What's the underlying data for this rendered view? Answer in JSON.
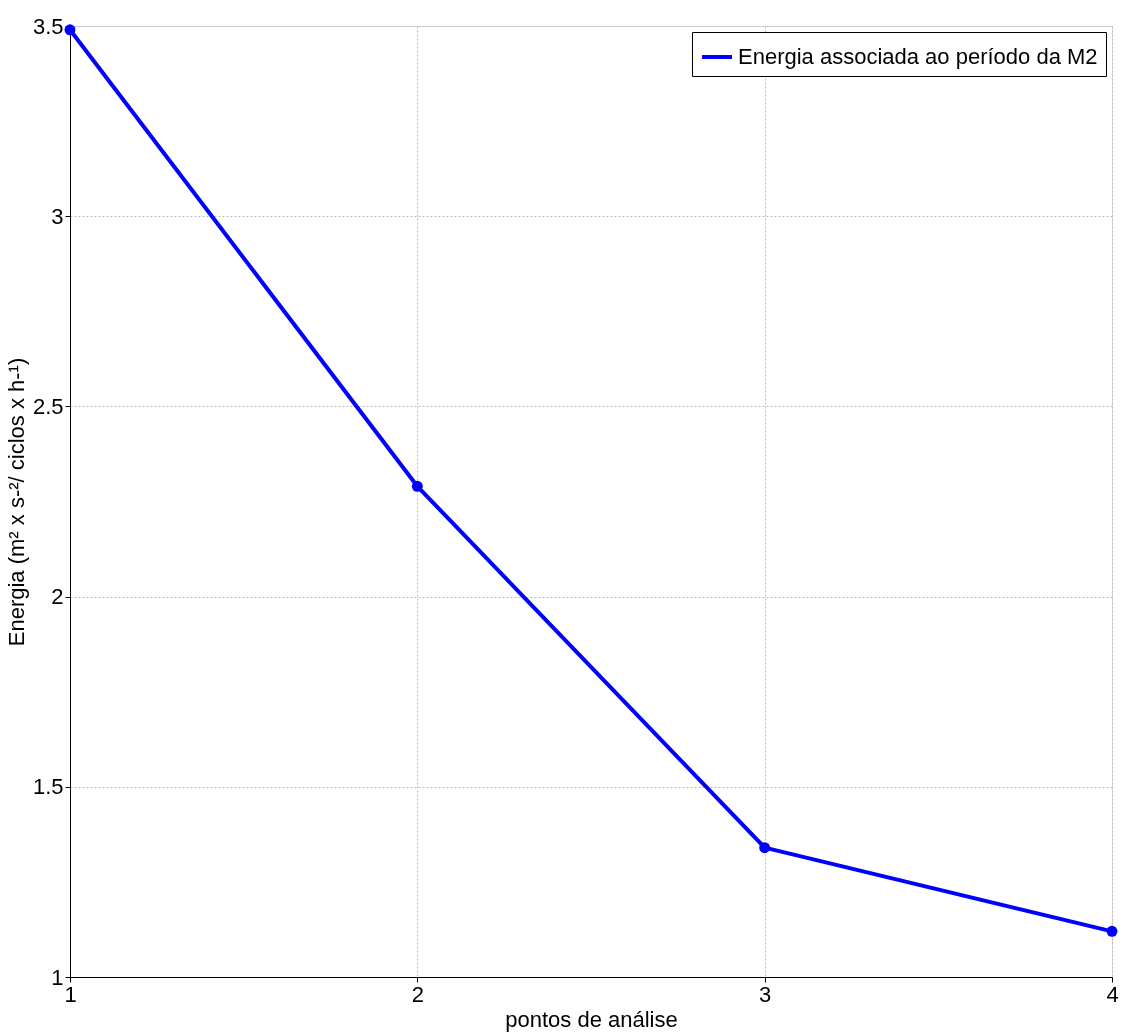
{
  "chart_data": {
    "type": "line",
    "xlabel": "pontos de análise",
    "ylabel": "Energia (m² x s-²/ ciclos x h-¹)",
    "x": [
      1,
      2,
      3,
      4
    ],
    "series": [
      {
        "name": "Energia associada ao período da M2",
        "color": "#0000ff",
        "values": [
          3.49,
          2.29,
          1.34,
          1.12
        ]
      }
    ],
    "xlim": [
      1,
      4
    ],
    "xticks": [
      1,
      2,
      3,
      4
    ],
    "ylim": [
      1,
      3.5
    ],
    "yticks": [
      1,
      1.5,
      2,
      2.5,
      3,
      3.5
    ],
    "grid": true,
    "legend": "top right",
    "marker": "circle",
    "line_style": "solid"
  }
}
